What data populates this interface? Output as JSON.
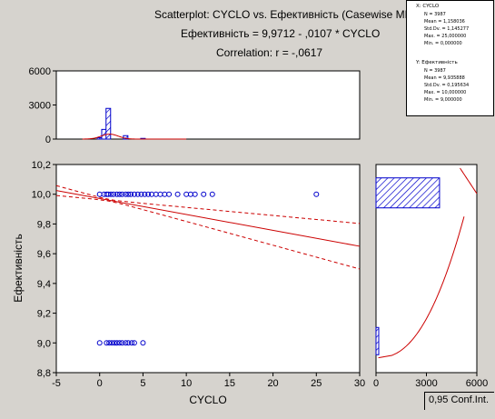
{
  "title": {
    "line1": "Scatterplot: CYCLO     vs.  Ефективність (Casewise MD deletion)",
    "line2": "Ефективність = 9,9712 - ,0107  * CYCLO",
    "line3": "Correlation: r = -,0617"
  },
  "stats_panel": [
    {
      "header": "X:  CYCLO",
      "lines": [
        "N = 3987",
        "Mean = 1,158036",
        "Std.Dv. = 1,145277",
        "Max. = 25,000000",
        "Min. = 0,000000"
      ]
    },
    {
      "header": "Y:  Ефективність",
      "lines": [
        "N = 3987",
        "Mean = 9,935888",
        "Std.Dv. = 0,195634",
        "Max. = 10,000000",
        "Min. = 9,000000"
      ]
    }
  ],
  "legend_label": "0,95 Conf.Int.",
  "colors": {
    "points": "#0000cc",
    "fit": "#cc0000",
    "bars": "#0000cc",
    "background": "#d6d3ce"
  },
  "chart_data": [
    {
      "type": "scatter",
      "name": "main",
      "xlabel": "CYCLO",
      "ylabel": "Ефективність",
      "xlim": [
        -5,
        30
      ],
      "ylim": [
        8.8,
        10.2
      ],
      "xticks": [
        "-5",
        "0",
        "5",
        "10",
        "15",
        "20",
        "25",
        "30"
      ],
      "yticks": [
        "8,8",
        "9,0",
        "9,2",
        "9,4",
        "9,6",
        "9,8",
        "10,0",
        "10,2"
      ],
      "points": [
        {
          "x": 0,
          "y": 10
        },
        {
          "x": 0.5,
          "y": 10
        },
        {
          "x": 0.8,
          "y": 10
        },
        {
          "x": 1,
          "y": 10
        },
        {
          "x": 1.3,
          "y": 10
        },
        {
          "x": 1.6,
          "y": 10
        },
        {
          "x": 2,
          "y": 10
        },
        {
          "x": 2.3,
          "y": 10
        },
        {
          "x": 2.6,
          "y": 10
        },
        {
          "x": 3,
          "y": 10
        },
        {
          "x": 3.3,
          "y": 10
        },
        {
          "x": 3.6,
          "y": 10
        },
        {
          "x": 4,
          "y": 10
        },
        {
          "x": 4.4,
          "y": 10
        },
        {
          "x": 4.8,
          "y": 10
        },
        {
          "x": 5.2,
          "y": 10
        },
        {
          "x": 5.6,
          "y": 10
        },
        {
          "x": 6,
          "y": 10
        },
        {
          "x": 6.5,
          "y": 10
        },
        {
          "x": 7,
          "y": 10
        },
        {
          "x": 7.5,
          "y": 10
        },
        {
          "x": 8,
          "y": 10
        },
        {
          "x": 9,
          "y": 10
        },
        {
          "x": 10,
          "y": 10
        },
        {
          "x": 10.5,
          "y": 10
        },
        {
          "x": 11,
          "y": 10
        },
        {
          "x": 12,
          "y": 10
        },
        {
          "x": 13,
          "y": 10
        },
        {
          "x": 25,
          "y": 10
        },
        {
          "x": 0,
          "y": 9
        },
        {
          "x": 0.8,
          "y": 9
        },
        {
          "x": 1.1,
          "y": 9
        },
        {
          "x": 1.4,
          "y": 9
        },
        {
          "x": 1.7,
          "y": 9
        },
        {
          "x": 2,
          "y": 9
        },
        {
          "x": 2.3,
          "y": 9
        },
        {
          "x": 2.6,
          "y": 9
        },
        {
          "x": 3,
          "y": 9
        },
        {
          "x": 3.3,
          "y": 9
        },
        {
          "x": 3.7,
          "y": 9
        },
        {
          "x": 4,
          "y": 9
        },
        {
          "x": 5,
          "y": 9
        }
      ],
      "fit": {
        "intercept": 9.9712,
        "slope": -0.0107,
        "ci_level": 0.95
      }
    },
    {
      "type": "bar",
      "name": "x-histogram",
      "ylim": [
        0,
        6000
      ],
      "yticks": [
        "0",
        "3000",
        "6000"
      ],
      "bins": [
        {
          "x": 0,
          "value": 120
        },
        {
          "x": 0.5,
          "value": 850
        },
        {
          "x": 1,
          "value": 2700
        },
        {
          "x": 3,
          "value": 300
        },
        {
          "x": 5,
          "value": 60
        }
      ],
      "normal_fit": {
        "n": 3987,
        "mean": 1.158036,
        "sd": 1.145277,
        "bin_width": 1
      }
    },
    {
      "type": "bar",
      "name": "y-histogram",
      "orientation": "horizontal",
      "xlim": [
        0,
        6000
      ],
      "xticks": [
        "0",
        "3000",
        "6000"
      ],
      "bins": [
        {
          "y": 10,
          "value": 3780
        },
        {
          "y": 9,
          "value": 210
        }
      ]
    }
  ]
}
